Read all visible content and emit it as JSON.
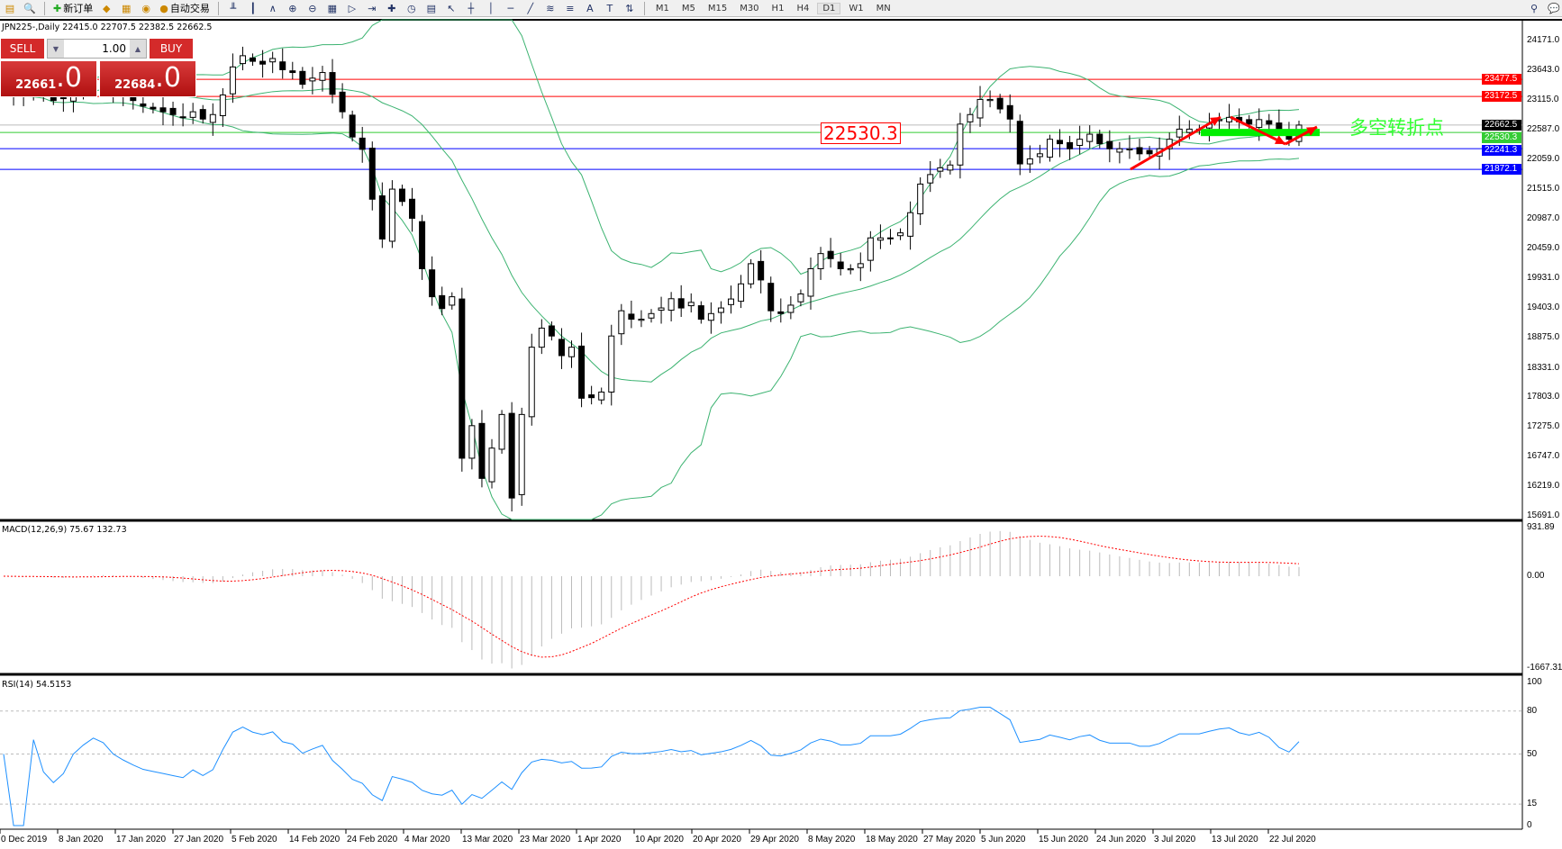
{
  "toolbar": {
    "items": [
      {
        "icon": "chart-icon"
      },
      {
        "icon": "zoom-window-icon"
      },
      {
        "icon": "new-order-icon",
        "label": "新订单"
      },
      {
        "icon": "market-watch-icon"
      },
      {
        "icon": "data-window-icon"
      },
      {
        "icon": "signals-icon"
      },
      {
        "icon": "auto-trading-icon",
        "label": "自动交易"
      }
    ],
    "timeframes": [
      "M1",
      "M5",
      "M15",
      "M30",
      "H1",
      "H4",
      "D1",
      "W1",
      "MN"
    ],
    "active_timeframe": "D1"
  },
  "chart": {
    "header": "JPN225-,Daily  22415.0 22707.5 22382.5 22662.5",
    "price_ticks": [
      "24171.0",
      "23643.0",
      "23115.0",
      "22587.0",
      "22059.0",
      "21515.0",
      "20987.0",
      "20459.0",
      "19931.0",
      "19403.0",
      "18875.0",
      "18331.0",
      "17803.0",
      "17275.0",
      "16747.0",
      "16219.0",
      "15691.0"
    ],
    "closes": [
      23300,
      23250,
      23200,
      23350,
      23200,
      23100,
      23150,
      23300,
      23400,
      23500,
      23450,
      23300,
      23200,
      23100,
      23000,
      22950,
      22900,
      22850,
      22800,
      22900,
      22770,
      22850,
      23200,
      23700,
      23900,
      23800,
      23750,
      23850,
      23650,
      23600,
      23390,
      23500,
      23600,
      23210,
      22900,
      22450,
      22230,
      21340,
      20630,
      21520,
      21300,
      21000,
      20100,
      19600,
      19390,
      19600,
      16720,
      17300,
      16360,
      16900,
      17500,
      16010,
      17500,
      18700,
      19040,
      18900,
      18550,
      18700,
      17790,
      17800,
      17900,
      18900,
      19350,
      19200,
      19200,
      19300,
      19400,
      19565,
      19400,
      19500,
      19200,
      19300,
      19400,
      19560,
      19830,
      20190,
      19900,
      19350,
      19300,
      19450,
      19650,
      20100,
      20370,
      20280,
      20100,
      20100,
      20190,
      20650,
      20650,
      20650,
      20740,
      21100,
      21610,
      21780,
      21900,
      21950,
      22680,
      22850,
      23120,
      23120,
      22950,
      22770,
      21970,
      22060,
      22150,
      22410,
      22330,
      22240,
      22410,
      22500,
      22330,
      22240,
      22240,
      22240,
      22150,
      22150,
      22240,
      22410,
      22590,
      22590,
      22590,
      22680,
      22760,
      22800,
      22720,
      22680,
      22760,
      22680,
      22500,
      22410,
      22662.5
    ],
    "levels": [
      {
        "price": 23477.5,
        "label": "23477.5",
        "color": "#ff0000"
      },
      {
        "price": 23172.5,
        "label": "23172.5",
        "color": "#ff0000"
      },
      {
        "price": 22662.5,
        "label": "22662.5",
        "color": "#000000"
      },
      {
        "price": 22530.3,
        "label": "22530.3",
        "color": "#33cc33"
      },
      {
        "price": 22241.3,
        "label": "22241.3",
        "color": "#0000ff"
      },
      {
        "price": 21872.1,
        "label": "21872.1",
        "color": "#0000ff"
      }
    ],
    "level_box": "22530.3",
    "annotation": "多空转折点",
    "dates": [
      "0 Dec 2019",
      "8 Jan 2020",
      "17 Jan 2020",
      "27 Jan 2020",
      "5 Feb 2020",
      "14 Feb 2020",
      "24 Feb 2020",
      "4 Mar 2020",
      "13 Mar 2020",
      "23 Mar 2020",
      "1 Apr 2020",
      "10 Apr 2020",
      "20 Apr 2020",
      "29 Apr 2020",
      "8 May 2020",
      "18 May 2020",
      "27 May 2020",
      "5 Jun 2020",
      "15 Jun 2020",
      "24 Jun 2020",
      "3 Jul 2020",
      "13 Jul 2020",
      "22 Jul 2020"
    ]
  },
  "trade": {
    "sell": "SELL",
    "buy": "BUY",
    "lot": "1.00",
    "bid_main": "22661",
    "bid_frac": ".0",
    "ask_main": "22684",
    "ask_frac": ".0"
  },
  "macd": {
    "title": "MACD(12,26,9) 75.67 132.73",
    "ticks": [
      "931.89",
      "0.00",
      "-1667.31"
    ]
  },
  "rsi": {
    "title": "RSI(14) 54.5153",
    "ticks": [
      "100",
      "80",
      "50",
      "15",
      "0"
    ]
  },
  "colors": {
    "bull": "#ffffff",
    "bear": "#000000",
    "bands": "#3cb371",
    "signal": "#ff0000",
    "rsi": "#1e90ff",
    "arrow": "#ff0000",
    "zone": "#00ee00"
  }
}
